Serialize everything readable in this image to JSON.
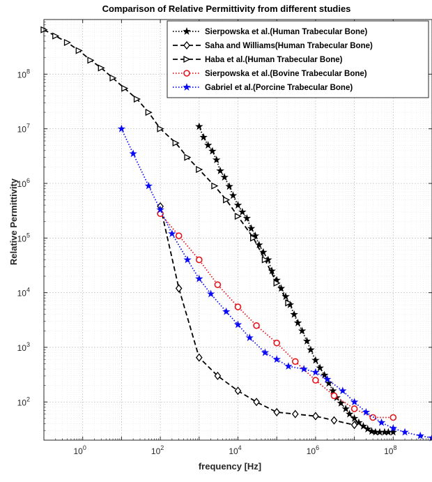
{
  "chart_data": {
    "type": "line",
    "title": "Comparison of Relative Permittivity from different studies",
    "xlabel": "frequency [Hz]",
    "ylabel": "Relative Permittivity",
    "xscale": "log",
    "yscale": "log",
    "xlim": [
      0.1,
      1000000000
    ],
    "ylim": [
      20,
      1000000000
    ],
    "grid": true,
    "legend_position": "top-right",
    "x_ticks": [
      {
        "value": 1,
        "base": "10",
        "exp": "0"
      },
      {
        "value": 100,
        "base": "10",
        "exp": "2"
      },
      {
        "value": 10000,
        "base": "10",
        "exp": "4"
      },
      {
        "value": 1000000,
        "base": "10",
        "exp": "6"
      },
      {
        "value": 100000000,
        "base": "10",
        "exp": "8"
      }
    ],
    "y_ticks": [
      {
        "value": 100,
        "base": "10",
        "exp": "2"
      },
      {
        "value": 1000,
        "base": "10",
        "exp": "3"
      },
      {
        "value": 10000,
        "base": "10",
        "exp": "4"
      },
      {
        "value": 100000,
        "base": "10",
        "exp": "5"
      },
      {
        "value": 1000000,
        "base": "10",
        "exp": "6"
      },
      {
        "value": 10000000,
        "base": "10",
        "exp": "7"
      },
      {
        "value": 100000000,
        "base": "10",
        "exp": "8"
      }
    ],
    "series": [
      {
        "name": "Sierpowska et al.(Human Trabecular Bone)",
        "color": "#000000",
        "line": "dotted",
        "marker": "star",
        "points": [
          [
            1000,
            11000000
          ],
          [
            1300,
            7000000
          ],
          [
            1700,
            5000000
          ],
          [
            2200,
            3900000
          ],
          [
            2800,
            2700000
          ],
          [
            3500,
            1700000
          ],
          [
            4500,
            1300000
          ],
          [
            6000,
            880000
          ],
          [
            7500,
            600000
          ],
          [
            10000,
            400000
          ],
          [
            13000,
            300000
          ],
          [
            17000,
            230000
          ],
          [
            22000,
            150000
          ],
          [
            28000,
            110000
          ],
          [
            35000,
            75000
          ],
          [
            45000,
            55000
          ],
          [
            60000,
            40000
          ],
          [
            75000,
            25000
          ],
          [
            100000,
            17000
          ],
          [
            130000,
            12000
          ],
          [
            170000,
            8500
          ],
          [
            220000,
            6000
          ],
          [
            280000,
            4000
          ],
          [
            350000,
            2800
          ],
          [
            450000,
            2000
          ],
          [
            600000,
            1300
          ],
          [
            750000,
            900
          ],
          [
            1000000,
            580
          ],
          [
            1300000,
            420
          ],
          [
            1700000,
            310
          ],
          [
            2200000,
            220
          ],
          [
            2800000,
            160
          ],
          [
            3500000,
            120
          ],
          [
            4500000,
            95
          ],
          [
            6000000,
            75
          ],
          [
            7500000,
            60
          ],
          [
            10000000,
            50
          ],
          [
            13000000,
            42
          ],
          [
            17000000,
            36
          ],
          [
            22000000,
            32
          ],
          [
            28000000,
            29
          ],
          [
            35000000,
            28
          ],
          [
            45000000,
            28
          ],
          [
            60000000,
            28
          ],
          [
            75000000,
            28
          ],
          [
            100000000,
            28
          ]
        ]
      },
      {
        "name": "Saha and Williams(Human Trabecular Bone)",
        "color": "#000000",
        "line": "dashed",
        "marker": "diamond",
        "points": [
          [
            100,
            380000
          ],
          [
            300,
            12000
          ],
          [
            1000,
            650
          ],
          [
            3000,
            300
          ],
          [
            10000,
            160
          ],
          [
            30000,
            100
          ],
          [
            100000,
            65
          ],
          [
            300000,
            60
          ],
          [
            1000000,
            55
          ],
          [
            3000000,
            46
          ],
          [
            10000000,
            38
          ]
        ]
      },
      {
        "name": "Haba et al.(Human Trabecular Bone)",
        "color": "#000000",
        "line": "dashed",
        "marker": "triangle-right",
        "points": [
          [
            0.1,
            650000000
          ],
          [
            0.2,
            500000000
          ],
          [
            0.4,
            380000000
          ],
          [
            0.8,
            270000000
          ],
          [
            1.6,
            180000000
          ],
          [
            3,
            130000000
          ],
          [
            6,
            85000000
          ],
          [
            12,
            55000000
          ],
          [
            25,
            35000000
          ],
          [
            50,
            20000000
          ],
          [
            100,
            10000000
          ],
          [
            250,
            5500000
          ],
          [
            500,
            3000000
          ],
          [
            1000,
            1800000
          ],
          [
            2500,
            900000
          ],
          [
            5000,
            500000
          ],
          [
            10000,
            250000
          ],
          [
            25000,
            100000
          ],
          [
            50000,
            40000
          ],
          [
            100000,
            15000
          ],
          [
            200000,
            6500
          ]
        ]
      },
      {
        "name": "Sierpowska et al.(Bovine Trabecular Bone)",
        "color": "#e3131a",
        "line": "dotted",
        "marker": "circle",
        "points": [
          [
            100,
            280000
          ],
          [
            300,
            110000
          ],
          [
            1000,
            40000
          ],
          [
            3000,
            14000
          ],
          [
            10000,
            5500
          ],
          [
            30000,
            2500
          ],
          [
            100000,
            1200
          ],
          [
            300000,
            550
          ],
          [
            1000000,
            250
          ],
          [
            3000000,
            130
          ],
          [
            10000000,
            75
          ],
          [
            30000000,
            52
          ],
          [
            100000000,
            52
          ]
        ]
      },
      {
        "name": "Gabriel et al.(Porcine Trabecular Bone)",
        "color": "#0a0af5",
        "line": "dotted",
        "marker": "star",
        "points": [
          [
            10,
            10000000
          ],
          [
            20,
            3500000
          ],
          [
            50,
            900000
          ],
          [
            100,
            330000
          ],
          [
            200,
            120000
          ],
          [
            500,
            40000
          ],
          [
            1000,
            18000
          ],
          [
            2000,
            9500
          ],
          [
            5000,
            4500
          ],
          [
            10000,
            2600
          ],
          [
            20000,
            1500
          ],
          [
            50000,
            800
          ],
          [
            100000,
            600
          ],
          [
            200000,
            450
          ],
          [
            500000,
            400
          ],
          [
            1000000,
            350
          ],
          [
            2000000,
            260
          ],
          [
            5000000,
            160
          ],
          [
            10000000,
            100
          ],
          [
            20000000,
            65
          ],
          [
            50000000,
            42
          ],
          [
            100000000,
            33
          ],
          [
            200000000,
            28
          ],
          [
            500000000,
            24
          ],
          [
            1000000000,
            22
          ]
        ]
      }
    ]
  }
}
